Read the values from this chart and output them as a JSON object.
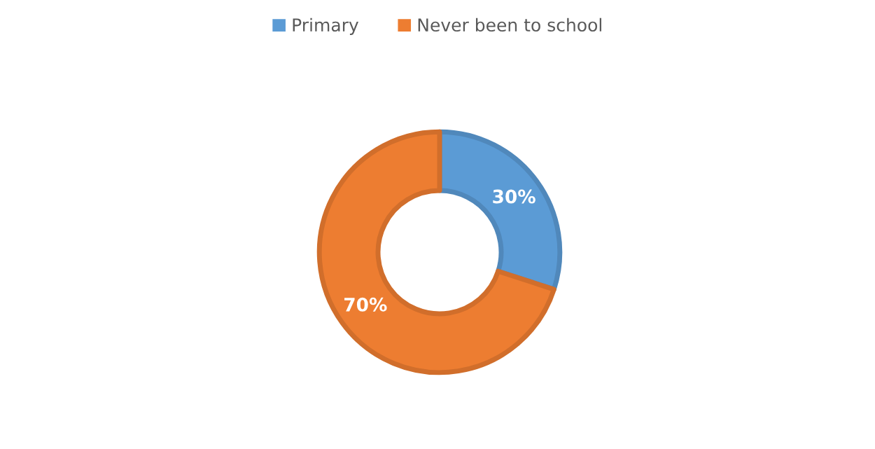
{
  "chart_data": {
    "type": "donut",
    "categories": [
      "Primary",
      "Never been to school"
    ],
    "values": [
      30,
      70
    ],
    "colors": [
      "#5b9bd5",
      "#ed7d31"
    ],
    "value_labels": [
      "30%",
      "70%"
    ],
    "legend": "top"
  }
}
